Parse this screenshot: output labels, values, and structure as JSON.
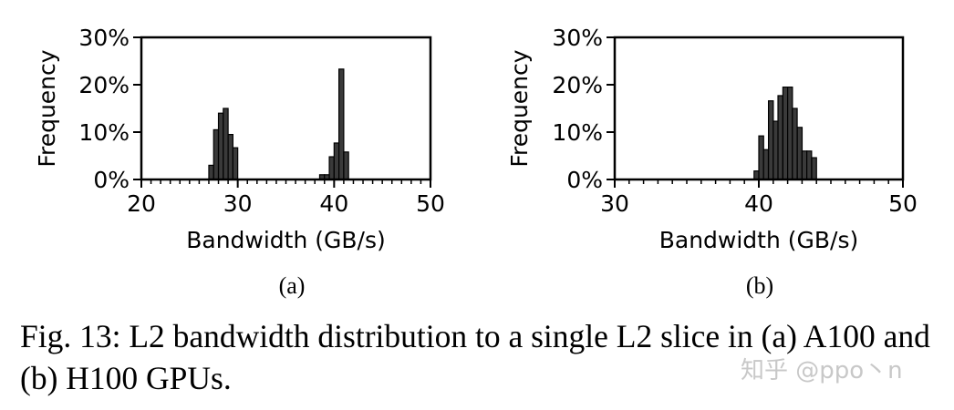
{
  "chart_data": [
    {
      "type": "bar",
      "panel_label": "(a)",
      "xlabel": "Bandwidth (GB/s)",
      "ylabel": "Frequency",
      "xlim": [
        20,
        50
      ],
      "ylim": [
        0,
        30
      ],
      "xticks": [
        "20",
        "30",
        "40",
        "50"
      ],
      "yticks": [
        "0%",
        "10%",
        "20%",
        "30%"
      ],
      "bin_width": 0.5,
      "bars": [
        {
          "x": 27.0,
          "value": 3.0
        },
        {
          "x": 27.5,
          "value": 10.5
        },
        {
          "x": 28.0,
          "value": 14.0
        },
        {
          "x": 28.5,
          "value": 15.0
        },
        {
          "x": 29.0,
          "value": 9.5
        },
        {
          "x": 29.5,
          "value": 6.7
        },
        {
          "x": 38.5,
          "value": 1.0
        },
        {
          "x": 39.0,
          "value": 1.0
        },
        {
          "x": 39.5,
          "value": 4.8
        },
        {
          "x": 40.0,
          "value": 7.7
        },
        {
          "x": 40.5,
          "value": 23.3
        },
        {
          "x": 41.0,
          "value": 5.8
        }
      ]
    },
    {
      "type": "bar",
      "panel_label": "(b)",
      "xlabel": "Bandwidth (GB/s)",
      "ylabel": "Frequency",
      "xlim": [
        30,
        50
      ],
      "ylim": [
        0,
        30
      ],
      "xticks": [
        "30",
        "40",
        "50"
      ],
      "yticks": [
        "0%",
        "10%",
        "20%",
        "30%"
      ],
      "bin_width": 0.333,
      "bars": [
        {
          "x": 39.67,
          "value": 1.8
        },
        {
          "x": 40.0,
          "value": 9.2
        },
        {
          "x": 40.33,
          "value": 6.3
        },
        {
          "x": 40.67,
          "value": 16.6
        },
        {
          "x": 41.0,
          "value": 12.3
        },
        {
          "x": 41.33,
          "value": 17.7
        },
        {
          "x": 41.67,
          "value": 19.5
        },
        {
          "x": 42.0,
          "value": 19.5
        },
        {
          "x": 42.33,
          "value": 15.0
        },
        {
          "x": 42.67,
          "value": 11.0
        },
        {
          "x": 43.0,
          "value": 6.0
        },
        {
          "x": 43.33,
          "value": 6.0
        },
        {
          "x": 43.67,
          "value": 4.6
        }
      ]
    }
  ],
  "colors": {
    "bar_fill": "#3a3a3a",
    "bar_edge": "#000000",
    "axis": "#000000"
  },
  "caption": "Fig. 13: L2 bandwidth distribution to a single L2 slice in (a) A100 and (b) H100 GPUs.",
  "watermark": "知乎 @ppo丶n"
}
